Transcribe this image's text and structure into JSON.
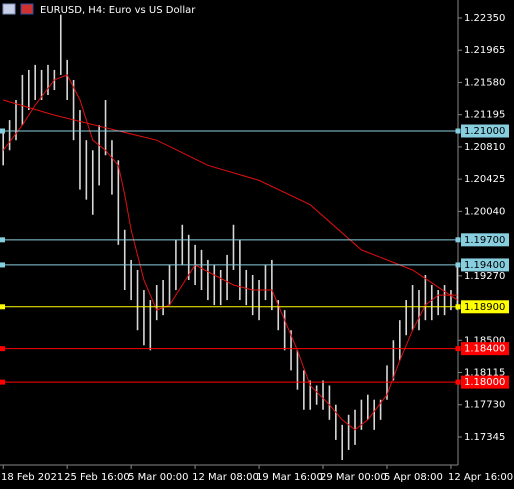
{
  "chart_data": {
    "type": "ohlc",
    "title": "EURUSD, H4:  Euro vs US Dollar",
    "bar_color": "#d8d8d8",
    "xlim": [
      -0.5,
      71.1
    ],
    "xticks": [
      {
        "value": 0,
        "label": "18 Feb 2021"
      },
      {
        "value": 10,
        "label": "25 Feb 16:00"
      },
      {
        "value": 20,
        "label": "5 Mar 00:00"
      },
      {
        "value": 30,
        "label": "12 Mar 08:00"
      },
      {
        "value": 40,
        "label": "19 Mar 16:00"
      },
      {
        "value": 50,
        "label": "29 Mar 00:00"
      },
      {
        "value": 60,
        "label": "5 Apr 08:00"
      },
      {
        "value": 70,
        "label": "12 Apr 16:00"
      }
    ],
    "ylim": [
      1.1701,
      1.22565
    ],
    "yticks": [
      {
        "value": 1.2235,
        "label": "1.22350"
      },
      {
        "value": 1.21965,
        "label": "1.21965"
      },
      {
        "value": 1.2158,
        "label": "1.21580"
      },
      {
        "value": 1.21195,
        "label": "1.21195"
      },
      {
        "value": 1.2081,
        "label": "1.20810"
      },
      {
        "value": 1.20425,
        "label": "1.20425"
      },
      {
        "value": 1.2004,
        "label": "1.20040"
      },
      {
        "value": 1.1927,
        "label": "1.19270"
      },
      {
        "value": 1.185,
        "label": "1.18500"
      },
      {
        "value": 1.18115,
        "label": "1.18115"
      },
      {
        "value": 1.1773,
        "label": "1.17730"
      },
      {
        "value": 1.17345,
        "label": "1.17345"
      }
    ],
    "high": [
      1.2101,
      1.2113,
      1.2137,
      1.2167,
      1.2173,
      1.2179,
      1.2173,
      1.2179,
      1.2173,
      1.2239,
      1.2185,
      1.2161,
      1.2125,
      1.2089,
      1.2077,
      1.2107,
      1.2137,
      1.2089,
      1.2065,
      1.1982,
      1.1946,
      1.1934,
      1.191,
      1.1898,
      1.1916,
      1.1922,
      1.194,
      1.197,
      1.1988,
      1.1976,
      1.1964,
      1.1958,
      1.1946,
      1.194,
      1.1934,
      1.1952,
      1.1988,
      1.197,
      1.1934,
      1.1928,
      1.1922,
      1.194,
      1.1946,
      1.1898,
      1.1886,
      1.1862,
      1.1838,
      1.1814,
      1.1802,
      1.1796,
      1.1802,
      1.1796,
      1.1773,
      1.1749,
      1.1761,
      1.1767,
      1.1779,
      1.1785,
      1.1779,
      1.1779,
      1.182,
      1.185,
      1.1874,
      1.1898,
      1.1916,
      1.191,
      1.1928,
      1.1916,
      1.191,
      1.1916,
      1.191,
      1.194
    ],
    "low": [
      1.2059,
      1.2077,
      1.2089,
      1.2107,
      1.2125,
      1.2137,
      1.2137,
      1.2143,
      1.2149,
      1.2167,
      1.2137,
      1.2089,
      1.203,
      1.2018,
      1.2,
      1.2035,
      1.2071,
      1.2024,
      1.1964,
      1.191,
      1.1898,
      1.1862,
      1.1844,
      1.1838,
      1.1874,
      1.188,
      1.1892,
      1.191,
      1.194,
      1.1922,
      1.1916,
      1.191,
      1.1898,
      1.1892,
      1.1892,
      1.1898,
      1.1934,
      1.1898,
      1.1892,
      1.188,
      1.1874,
      1.1898,
      1.1886,
      1.1862,
      1.1838,
      1.1814,
      1.1791,
      1.1767,
      1.1767,
      1.1773,
      1.1767,
      1.1755,
      1.1731,
      1.1707,
      1.1719,
      1.1725,
      1.1743,
      1.1755,
      1.1743,
      1.1755,
      1.1779,
      1.1802,
      1.1826,
      1.1856,
      1.1862,
      1.1862,
      1.1874,
      1.1874,
      1.188,
      1.188,
      1.1886,
      1.1886
    ],
    "overlays": [
      {
        "color": "#e01010",
        "x": [
          0,
          3,
          5,
          8,
          10,
          12,
          14,
          16,
          18,
          19,
          20,
          22,
          24,
          26,
          28,
          30,
          33,
          36,
          39,
          42,
          44,
          46,
          48,
          51,
          53,
          55,
          57,
          60,
          62,
          64,
          66,
          68,
          71
        ],
        "values": [
          1.2077,
          1.2107,
          1.2131,
          1.2161,
          1.2167,
          1.2137,
          1.2089,
          1.2077,
          1.2059,
          1.2024,
          1.1982,
          1.1922,
          1.1886,
          1.1892,
          1.1916,
          1.194,
          1.1928,
          1.1916,
          1.191,
          1.191,
          1.1874,
          1.1838,
          1.1796,
          1.1773,
          1.1755,
          1.1743,
          1.1755,
          1.1785,
          1.1826,
          1.1862,
          1.1892,
          1.1904,
          1.1904
        ]
      },
      {
        "color": "#e01010",
        "x": [
          0,
          8,
          16,
          24,
          32,
          40,
          48,
          56,
          64,
          71
        ],
        "values": [
          1.2137,
          1.2119,
          1.2104,
          1.2089,
          1.2059,
          1.2041,
          1.2012,
          1.1958,
          1.1934,
          1.1898
        ]
      }
    ],
    "levels": [
      {
        "value": 1.21,
        "label": "1.21000",
        "color": "#87cedf"
      },
      {
        "value": 1.197,
        "label": "1.19700",
        "color": "#87cedf"
      },
      {
        "value": 1.194,
        "label": "1.19400",
        "color": "#87cedf"
      },
      {
        "value": 1.189,
        "label": "1.18900",
        "color": "#ffff00"
      },
      {
        "value": 1.184,
        "label": "1.18400",
        "color": "#ff0000"
      },
      {
        "value": 1.18,
        "label": "1.18000",
        "color": "#ff0000"
      }
    ]
  }
}
